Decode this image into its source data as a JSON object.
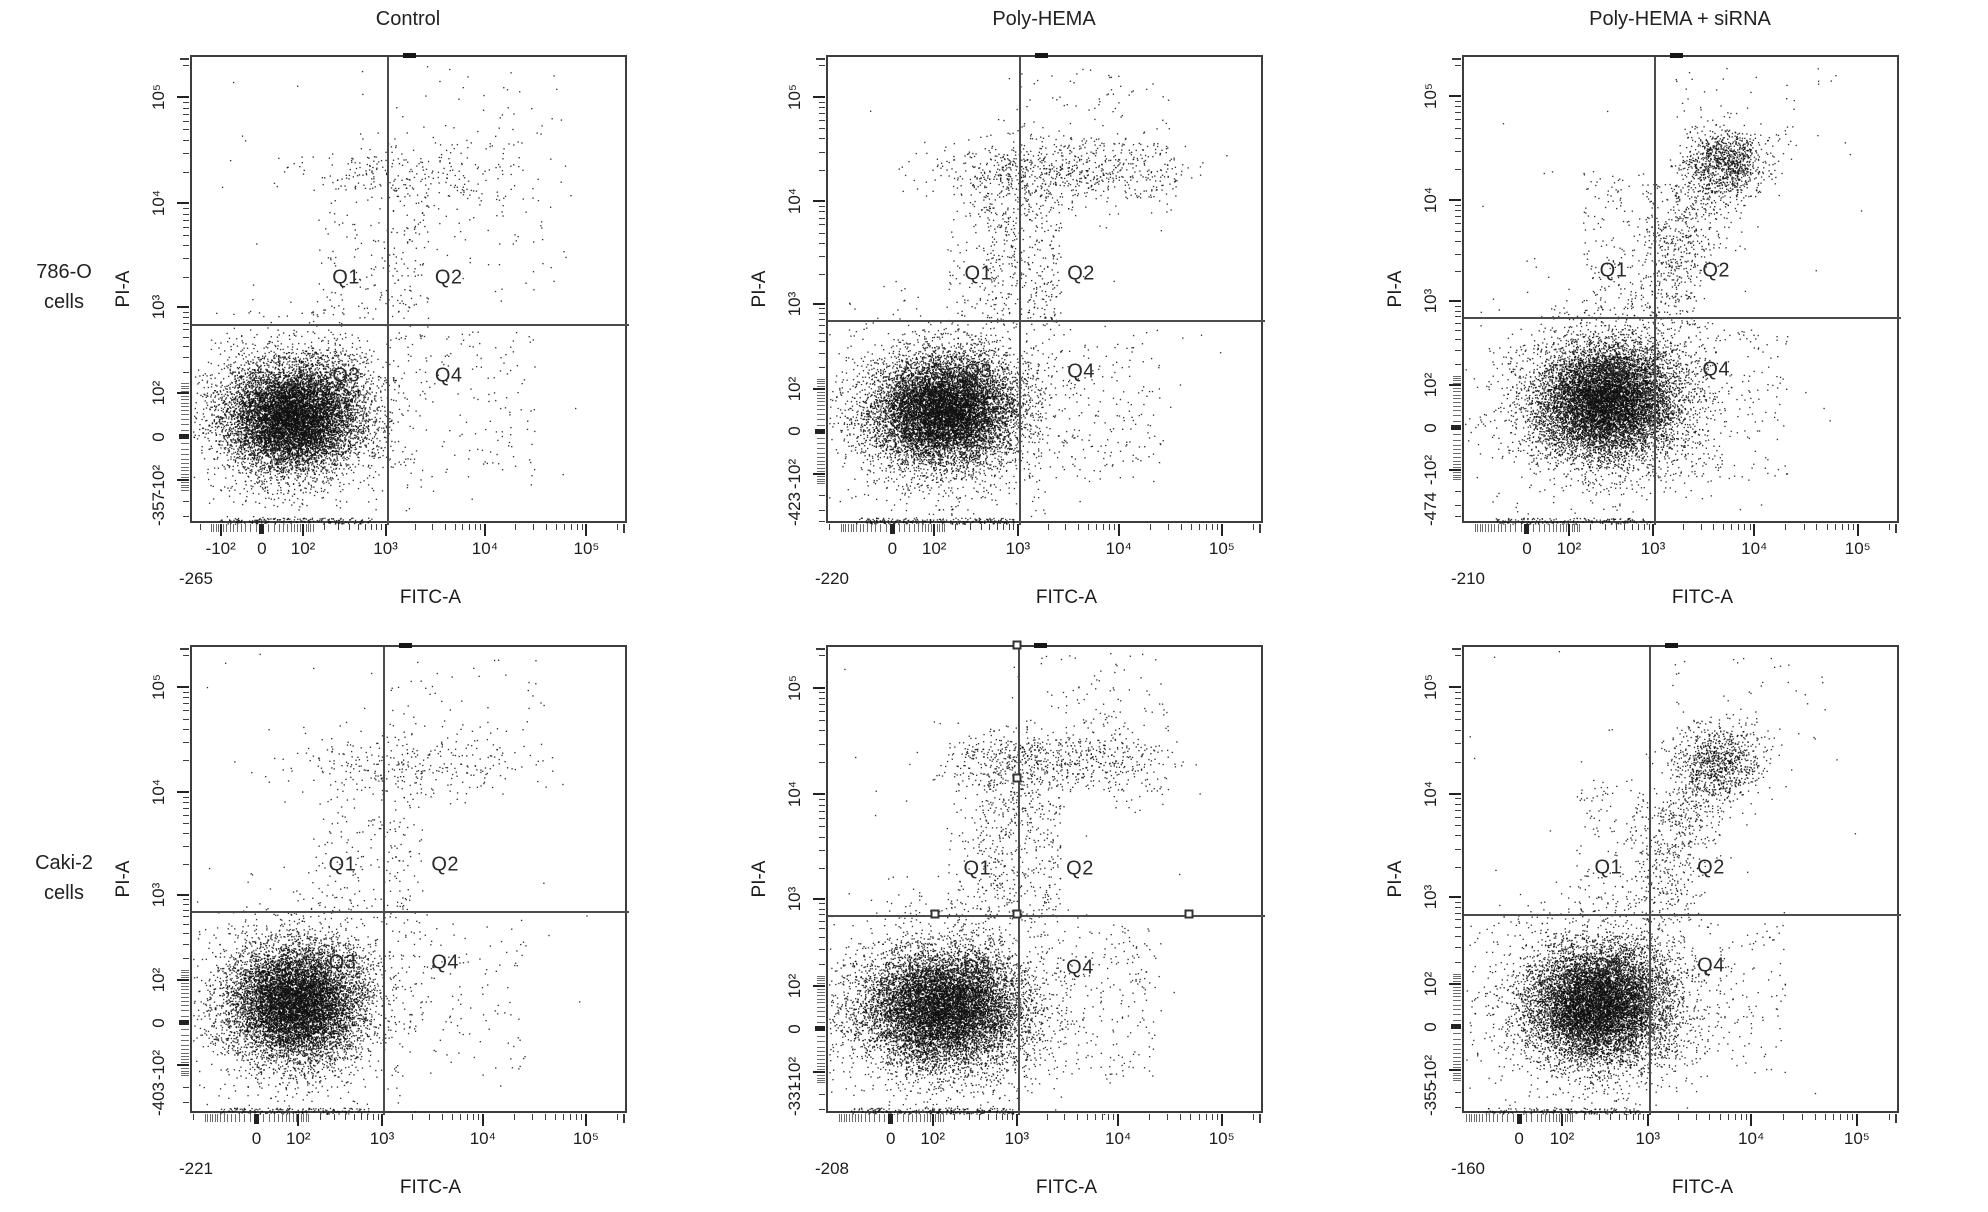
{
  "figure": {
    "column_titles": [
      "Control",
      "Poly-HEMA",
      "Poly-HEMA + siRNA"
    ],
    "row_labels": [
      [
        "786-O",
        "cells"
      ],
      [
        "Caki-2",
        "cells"
      ]
    ],
    "colors": {
      "dot": "#141414",
      "axis": "#3d3d3d",
      "gate": "#4c4c4c",
      "text": "#1c1c1c",
      "background": "#ffffff"
    }
  },
  "chart_data": {
    "type": "scatter",
    "description": "Six flow-cytometry dot plots (Annexin V-FITC vs PI apoptosis assay) in a 2x3 grid. Rows: 786-O cells and Caki-2 cells; columns: Control, Poly-HEMA, Poly-HEMA + siRNA. Each plot has a quadrant gate (Q1-Q4) with the vertical gate at FITC ~10^3 and horizontal gate just below PI 10^3. Density clusters are estimated from pixels.",
    "xlabel": "FITC-A",
    "ylabel": "PI-A",
    "scale": "biexponential (approximated as symlog, linear width 65)",
    "axis_max": 250000,
    "values_estimated": true,
    "panels": [
      {
        "row_label": "786-O cells",
        "column_title": "Control",
        "x_min": -265,
        "y_min": -357,
        "x_min_label": "-265",
        "y_min_label": "-357",
        "x_ticks": [
          {
            "label": "-10²",
            "v": -100
          },
          {
            "label": "0",
            "v": 0
          },
          {
            "label": "10²",
            "v": 100
          },
          {
            "label": "10³",
            "v": 1000
          },
          {
            "label": "10⁴",
            "v": 10000
          },
          {
            "label": "10⁵",
            "v": 100000
          }
        ],
        "y_ticks": [
          {
            "label": "-10²",
            "v": -100
          },
          {
            "label": "0",
            "v": 0
          },
          {
            "label": "10²",
            "v": 100
          },
          {
            "label": "10³",
            "v": 1000
          },
          {
            "label": "10⁴",
            "v": 10000
          },
          {
            "label": "10⁵",
            "v": 100000
          }
        ],
        "gate": {
          "x": 1000,
          "y": 700
        },
        "quadrants": [
          "Q1",
          "Q2",
          "Q3",
          "Q4"
        ],
        "clusters": [
          {
            "t": "g",
            "x": 60,
            "y": 40,
            "sx": 0.075,
            "sy": 0.055,
            "n": 8200
          },
          {
            "t": "g",
            "x": 60,
            "y": 40,
            "sx": 0.12,
            "sy": 0.095,
            "n": 1600
          },
          {
            "t": "d",
            "x0": 20,
            "y0": 6,
            "x1": 420,
            "y1": 160,
            "s": 0.055,
            "n": 500
          },
          {
            "t": "g",
            "x": 1800,
            "y": 21000,
            "sx": 0.16,
            "sy": 0.032,
            "n": 150
          },
          {
            "t": "b",
            "x0": 400,
            "x1": 22000,
            "y": 21000,
            "sy": 0.035,
            "n": 110
          },
          {
            "t": "u",
            "x0": 150,
            "x1": 900,
            "y0": 800,
            "y1": 20000,
            "n": 85
          },
          {
            "t": "u",
            "x0": 900,
            "x1": 2600,
            "y0": 500,
            "y1": 18000,
            "n": 110
          },
          {
            "t": "u",
            "x0": 1100,
            "x1": 30000,
            "y0": -120,
            "y1": 600,
            "n": 140
          },
          {
            "t": "u",
            "x0": 1500,
            "x1": 60000,
            "y0": 1500,
            "y1": 15000,
            "n": 60
          },
          {
            "t": "u",
            "x0": 500,
            "x1": 60000,
            "y0": 35000,
            "y1": 200000,
            "n": 40
          },
          {
            "t": "f",
            "x0": -120,
            "x1": 700,
            "n": 170
          },
          {
            "t": "u",
            "x0": -150,
            "x1": 120000,
            "y0": -250,
            "y1": 230000,
            "n": 30
          }
        ]
      },
      {
        "row_label": "786-O cells",
        "column_title": "Poly-HEMA",
        "x_min": -220,
        "y_min": -423,
        "x_min_label": "-220",
        "y_min_label": "-423",
        "x_ticks": [
          {
            "label": "0",
            "v": 0
          },
          {
            "label": "10²",
            "v": 100
          },
          {
            "label": "10³",
            "v": 1000
          },
          {
            "label": "10⁴",
            "v": 10000
          },
          {
            "label": "10⁵",
            "v": 100000
          }
        ],
        "y_ticks": [
          {
            "label": "-10²",
            "v": -100
          },
          {
            "label": "0",
            "v": 0
          },
          {
            "label": "10²",
            "v": 100
          },
          {
            "label": "10³",
            "v": 1000
          },
          {
            "label": "10⁴",
            "v": 10000
          },
          {
            "label": "10⁵",
            "v": 100000
          }
        ],
        "gate": {
          "x": 1000,
          "y": 700
        },
        "quadrants": [
          "Q1",
          "Q2",
          "Q3",
          "Q4"
        ],
        "clusters": [
          {
            "t": "g",
            "x": 130,
            "y": 40,
            "sx": 0.08,
            "sy": 0.055,
            "n": 8500
          },
          {
            "t": "g",
            "x": 130,
            "y": 40,
            "sx": 0.13,
            "sy": 0.1,
            "n": 1700
          },
          {
            "t": "d",
            "x0": 30,
            "y0": 6,
            "x1": 600,
            "y1": 180,
            "s": 0.055,
            "n": 500
          },
          {
            "t": "g",
            "x": 2000,
            "y": 21000,
            "sx": 0.14,
            "sy": 0.03,
            "n": 520
          },
          {
            "t": "b",
            "x0": 300,
            "x1": 35000,
            "y": 20000,
            "sy": 0.05,
            "n": 280
          },
          {
            "t": "u",
            "x0": 400,
            "x1": 2600,
            "y0": 600,
            "y1": 16000,
            "n": 380
          },
          {
            "t": "u",
            "x0": 150,
            "x1": 900,
            "y0": 800,
            "y1": 20000,
            "n": 100
          },
          {
            "t": "u",
            "x0": 1100,
            "x1": 25000,
            "y0": -120,
            "y1": 600,
            "n": 200
          },
          {
            "t": "u",
            "x0": 800,
            "x1": 30000,
            "y0": 30000,
            "y1": 200000,
            "n": 70
          },
          {
            "t": "f",
            "x0": -100,
            "x1": 900,
            "n": 200
          },
          {
            "t": "u",
            "x0": -150,
            "x1": 120000,
            "y0": -250,
            "y1": 230000,
            "n": 30
          }
        ]
      },
      {
        "row_label": "786-O cells",
        "column_title": "Poly-HEMA + siRNA",
        "x_min": -210,
        "y_min": -474,
        "x_min_label": "-210",
        "y_min_label": "-474",
        "x_ticks": [
          {
            "label": "0",
            "v": 0
          },
          {
            "label": "10²",
            "v": 100
          },
          {
            "label": "10³",
            "v": 1000
          },
          {
            "label": "10⁴",
            "v": 10000
          },
          {
            "label": "10⁵",
            "v": 100000
          }
        ],
        "y_ticks": [
          {
            "label": "-10²",
            "v": -100
          },
          {
            "label": "0",
            "v": 0
          },
          {
            "label": "10²",
            "v": 100
          },
          {
            "label": "10³",
            "v": 1000
          },
          {
            "label": "10⁴",
            "v": 10000
          },
          {
            "label": "10⁵",
            "v": 100000
          }
        ],
        "gate": {
          "x": 1000,
          "y": 700
        },
        "quadrants": [
          "Q1",
          "Q2",
          "Q3",
          "Q4"
        ],
        "clusters": [
          {
            "t": "g",
            "x": 300,
            "y": 55,
            "sx": 0.08,
            "sy": 0.06,
            "n": 8000
          },
          {
            "t": "g",
            "x": 300,
            "y": 55,
            "sx": 0.13,
            "sy": 0.1,
            "n": 1500
          },
          {
            "t": "d",
            "x0": 60,
            "y0": 8,
            "x1": 1000,
            "y1": 300,
            "s": 0.055,
            "n": 800
          },
          {
            "t": "g",
            "x": 5000,
            "y": 24000,
            "sx": 0.046,
            "sy": 0.034,
            "n": 950
          },
          {
            "t": "d",
            "x0": 1200,
            "y0": 1500,
            "x1": 4500,
            "y1": 20000,
            "s": 0.045,
            "n": 430
          },
          {
            "t": "u",
            "x0": 800,
            "x1": 2500,
            "y0": 600,
            "y1": 15000,
            "n": 240
          },
          {
            "t": "u",
            "x0": 150,
            "x1": 800,
            "y0": 800,
            "y1": 20000,
            "n": 140
          },
          {
            "t": "u",
            "x0": 1100,
            "x1": 20000,
            "y0": -120,
            "y1": 600,
            "n": 150
          },
          {
            "t": "u",
            "x0": 1500,
            "x1": 50000,
            "y0": 35000,
            "y1": 200000,
            "n": 40
          },
          {
            "t": "f",
            "x0": -80,
            "x1": 900,
            "n": 150
          },
          {
            "t": "u",
            "x0": -150,
            "x1": 120000,
            "y0": -250,
            "y1": 230000,
            "n": 30
          }
        ]
      },
      {
        "row_label": "Caki-2 cells",
        "column_title": "Control",
        "x_min": -221,
        "y_min": -403,
        "x_min_label": "-221",
        "y_min_label": "-403",
        "x_ticks": [
          {
            "label": "0",
            "v": 0
          },
          {
            "label": "10²",
            "v": 100
          },
          {
            "label": "10³",
            "v": 1000
          },
          {
            "label": "10⁴",
            "v": 10000
          },
          {
            "label": "10⁵",
            "v": 100000
          }
        ],
        "y_ticks": [
          {
            "label": "-10²",
            "v": -100
          },
          {
            "label": "0",
            "v": 0
          },
          {
            "label": "10²",
            "v": 100
          },
          {
            "label": "10³",
            "v": 1000
          },
          {
            "label": "10⁴",
            "v": 10000
          },
          {
            "label": "10⁵",
            "v": 100000
          }
        ],
        "gate": {
          "x": 1000,
          "y": 700
        },
        "quadrants": [
          "Q1",
          "Q2",
          "Q3",
          "Q4"
        ],
        "clusters": [
          {
            "t": "g",
            "x": 80,
            "y": 40,
            "sx": 0.075,
            "sy": 0.06,
            "n": 8000
          },
          {
            "t": "g",
            "x": 80,
            "y": 40,
            "sx": 0.12,
            "sy": 0.1,
            "n": 1500
          },
          {
            "t": "d",
            "x0": 25,
            "y0": 6,
            "x1": 500,
            "y1": 170,
            "s": 0.055,
            "n": 450
          },
          {
            "t": "g",
            "x": 1500,
            "y": 20000,
            "sx": 0.15,
            "sy": 0.033,
            "n": 200
          },
          {
            "t": "b",
            "x0": 300,
            "x1": 20000,
            "y": 19000,
            "sy": 0.04,
            "n": 110
          },
          {
            "t": "u",
            "x0": 150,
            "x1": 900,
            "y0": 700,
            "y1": 18000,
            "n": 90
          },
          {
            "t": "u",
            "x0": 900,
            "x1": 2500,
            "y0": 500,
            "y1": 15000,
            "n": 100
          },
          {
            "t": "u",
            "x0": 1100,
            "x1": 25000,
            "y0": -120,
            "y1": 600,
            "n": 110
          },
          {
            "t": "u",
            "x0": 600,
            "x1": 40000,
            "y0": 30000,
            "y1": 200000,
            "n": 45
          },
          {
            "t": "f",
            "x0": -100,
            "x1": 700,
            "n": 150
          },
          {
            "t": "u",
            "x0": -150,
            "x1": 120000,
            "y0": -250,
            "y1": 230000,
            "n": 25
          }
        ]
      },
      {
        "row_label": "Caki-2 cells",
        "column_title": "Poly-HEMA",
        "x_min": -208,
        "y_min": -331,
        "x_min_label": "-208",
        "y_min_label": "-331",
        "x_ticks": [
          {
            "label": "0",
            "v": 0
          },
          {
            "label": "10²",
            "v": 100
          },
          {
            "label": "10³",
            "v": 1000
          },
          {
            "label": "10⁴",
            "v": 10000
          },
          {
            "label": "10⁵",
            "v": 100000
          }
        ],
        "y_ticks": [
          {
            "label": "-10²",
            "v": -100
          },
          {
            "label": "0",
            "v": 0
          },
          {
            "label": "10²",
            "v": 100
          },
          {
            "label": "10³",
            "v": 1000
          },
          {
            "label": "10⁴",
            "v": 10000
          },
          {
            "label": "10⁵",
            "v": 100000
          }
        ],
        "gate": {
          "x": 1000,
          "y": 700
        },
        "quadrants": [
          "Q1",
          "Q2",
          "Q3",
          "Q4"
        ],
        "handles": [
          {
            "on": "v",
            "f": 1.0
          },
          {
            "on": "v",
            "f": 0.715
          },
          {
            "on": "c",
            "f": 0
          },
          {
            "on": "h",
            "f": 0.25
          },
          {
            "on": "h",
            "f": 0.83
          }
        ],
        "clusters": [
          {
            "t": "g",
            "x": 130,
            "y": 40,
            "sx": 0.09,
            "sy": 0.06,
            "n": 8500
          },
          {
            "t": "g",
            "x": 130,
            "y": 40,
            "sx": 0.14,
            "sy": 0.1,
            "n": 1700
          },
          {
            "t": "d",
            "x0": 30,
            "y0": 6,
            "x1": 600,
            "y1": 180,
            "s": 0.055,
            "n": 500
          },
          {
            "t": "g",
            "x": 2000,
            "y": 22000,
            "sx": 0.13,
            "sy": 0.028,
            "n": 500
          },
          {
            "t": "b",
            "x0": 250,
            "x1": 30000,
            "y": 20000,
            "sy": 0.05,
            "n": 260
          },
          {
            "t": "u",
            "x0": 350,
            "x1": 2600,
            "y0": 600,
            "y1": 15000,
            "n": 420
          },
          {
            "t": "u",
            "x0": 150,
            "x1": 900,
            "y0": 700,
            "y1": 18000,
            "n": 110
          },
          {
            "t": "u",
            "x0": 1100,
            "x1": 25000,
            "y0": -120,
            "y1": 600,
            "n": 220
          },
          {
            "t": "u",
            "x0": 800,
            "x1": 30000,
            "y0": 30000,
            "y1": 220000,
            "n": 80
          },
          {
            "t": "f",
            "x0": -100,
            "x1": 900,
            "n": 190
          },
          {
            "t": "u",
            "x0": -150,
            "x1": 120000,
            "y0": -250,
            "y1": 230000,
            "n": 30
          }
        ]
      },
      {
        "row_label": "Caki-2 cells",
        "column_title": "Poly-HEMA + siRNA",
        "x_min": -160,
        "y_min": -355,
        "x_min_label": "-160",
        "y_min_label": "-355",
        "x_ticks": [
          {
            "label": "0",
            "v": 0
          },
          {
            "label": "10²",
            "v": 100
          },
          {
            "label": "10³",
            "v": 1000
          },
          {
            "label": "10⁴",
            "v": 10000
          },
          {
            "label": "10⁵",
            "v": 100000
          }
        ],
        "y_ticks": [
          {
            "label": "-10²",
            "v": -100
          },
          {
            "label": "0",
            "v": 0
          },
          {
            "label": "10²",
            "v": 100
          },
          {
            "label": "10³",
            "v": 1000
          },
          {
            "label": "10⁴",
            "v": 10000
          },
          {
            "label": "10⁵",
            "v": 100000
          }
        ],
        "gate": {
          "x": 1000,
          "y": 700
        },
        "quadrants": [
          "Q1",
          "Q2",
          "Q3",
          "Q4"
        ],
        "clusters": [
          {
            "t": "g",
            "x": 280,
            "y": 45,
            "sx": 0.08,
            "sy": 0.06,
            "n": 8000
          },
          {
            "t": "g",
            "x": 280,
            "y": 45,
            "sx": 0.13,
            "sy": 0.1,
            "n": 1500
          },
          {
            "t": "d",
            "x0": 60,
            "y0": 8,
            "x1": 900,
            "y1": 250,
            "s": 0.055,
            "n": 700
          },
          {
            "t": "g",
            "x": 4500,
            "y": 21000,
            "sx": 0.05,
            "sy": 0.037,
            "n": 900
          },
          {
            "t": "d",
            "x0": 1200,
            "y0": 1200,
            "x1": 4200,
            "y1": 17000,
            "s": 0.045,
            "n": 380
          },
          {
            "t": "u",
            "x0": 800,
            "x1": 2500,
            "y0": 600,
            "y1": 12000,
            "n": 200
          },
          {
            "t": "u",
            "x0": 150,
            "x1": 800,
            "y0": 700,
            "y1": 15000,
            "n": 110
          },
          {
            "t": "u",
            "x0": 1100,
            "x1": 20000,
            "y0": -120,
            "y1": 600,
            "n": 140
          },
          {
            "t": "u",
            "x0": 1500,
            "x1": 50000,
            "y0": 30000,
            "y1": 200000,
            "n": 35
          },
          {
            "t": "f",
            "x0": -80,
            "x1": 900,
            "n": 140
          },
          {
            "t": "u",
            "x0": -150,
            "x1": 120000,
            "y0": -250,
            "y1": 230000,
            "n": 25
          }
        ]
      }
    ]
  }
}
